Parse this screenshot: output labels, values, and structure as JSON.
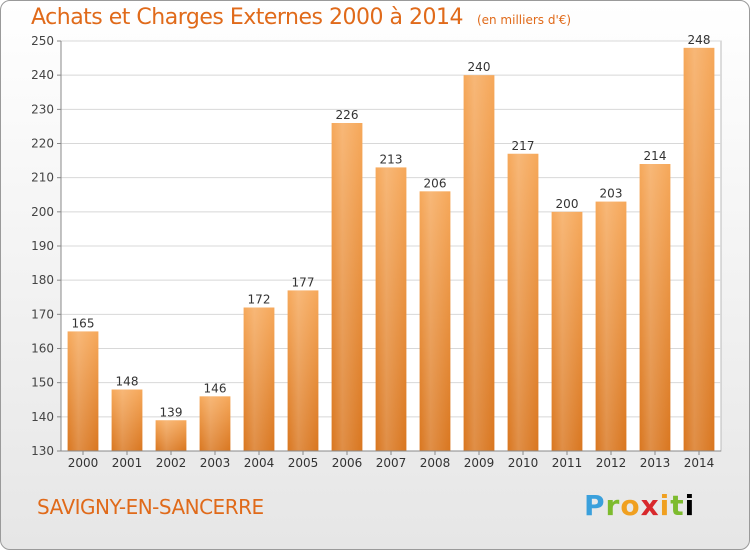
{
  "header": {
    "title": "Achats et Charges Externes 2000 à 2014",
    "unit": "(en milliers d'€)"
  },
  "footer": {
    "commune": "SAVIGNY-EN-SANCERRE",
    "logo_letters": [
      "P",
      "r",
      "o",
      "x",
      "i",
      "t",
      "i"
    ]
  },
  "colors": {
    "bar": "#e8873a",
    "title": "#e06a1a"
  },
  "chart_data": {
    "type": "bar",
    "title": "Achats et Charges Externes 2000 à 2014",
    "subtitle": "(en milliers d'€)",
    "categories": [
      "2000",
      "2001",
      "2002",
      "2003",
      "2004",
      "2005",
      "2006",
      "2007",
      "2008",
      "2009",
      "2010",
      "2011",
      "2012",
      "2013",
      "2014"
    ],
    "values": [
      165,
      148,
      139,
      146,
      172,
      177,
      226,
      213,
      206,
      240,
      217,
      200,
      203,
      214,
      248
    ],
    "ylim": [
      130,
      250
    ],
    "yticks": [
      130,
      140,
      150,
      160,
      170,
      180,
      190,
      200,
      210,
      220,
      230,
      240,
      250
    ],
    "grid": true,
    "legend": "none"
  }
}
